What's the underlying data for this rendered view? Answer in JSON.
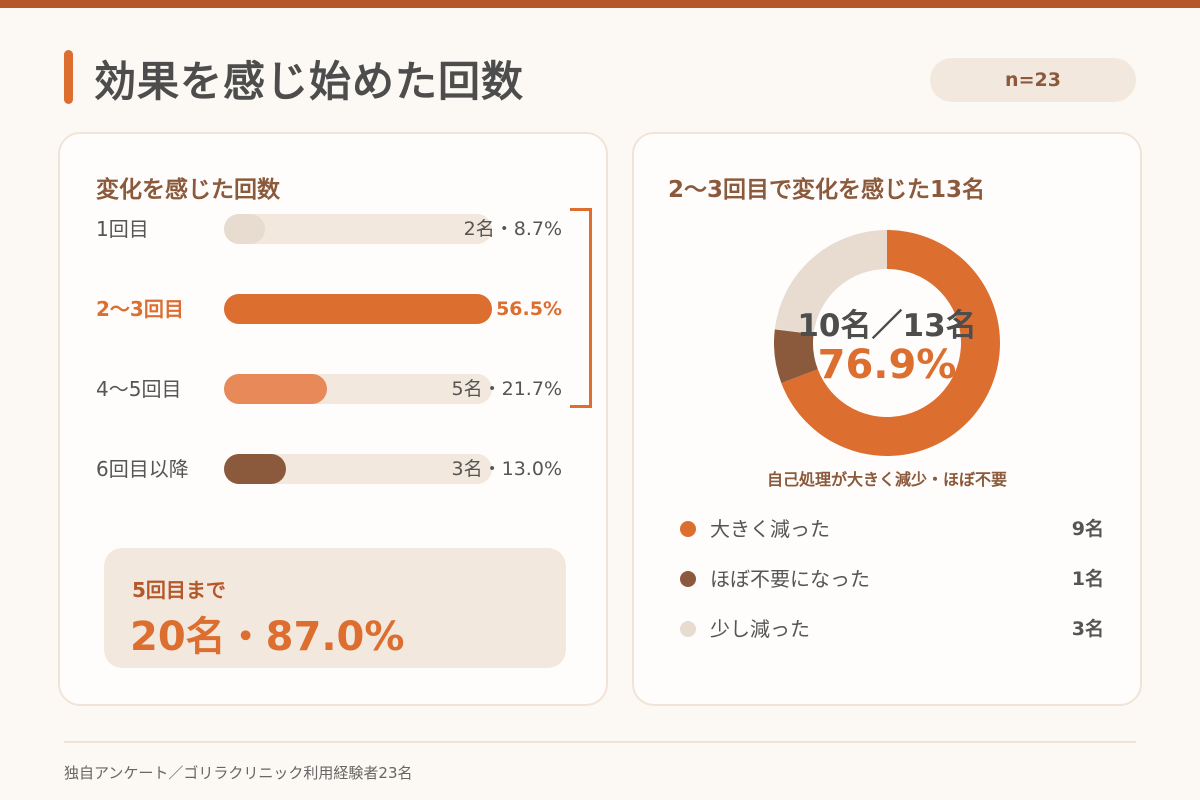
{
  "page": {
    "title": "効果を感じ始めた回数",
    "sample_size": "n=23",
    "source": "独自アンケート／ゴリラクリニック利用経験者23名"
  },
  "colors": {
    "accent": "#dc6e30",
    "brown": "#8b5a3c",
    "light_orange": "#e8895a",
    "beige": "#e8dbd0",
    "track": "#f2e8de"
  },
  "left_panel": {
    "title": "変化を感じた回数",
    "summary_label": "5回目まで",
    "summary_value": "20名・87.0%"
  },
  "right_panel": {
    "title": "2〜3回目で変化を感じた13名",
    "center_count": "10名／13名",
    "center_percent": "76.9%",
    "caption": "自己処理が大きく減少・ほぼ不要"
  },
  "chart_data": [
    {
      "type": "bar",
      "orientation": "horizontal",
      "title": "変化を感じた回数",
      "categories": [
        "1回目",
        "2〜3回目",
        "4〜5回目",
        "6回目以降"
      ],
      "values": [
        8.7,
        56.5,
        21.7,
        13.0
      ],
      "counts": [
        2,
        13,
        5,
        3
      ],
      "value_labels": [
        "2名・8.7%",
        "56.5%",
        "5名・21.7%",
        "3名・13.0%"
      ],
      "colors": [
        "#e8dbd0",
        "#dc6e30",
        "#e8895a",
        "#8b5a3c"
      ],
      "highlight_index": 1,
      "xlim": [
        0,
        56.5
      ]
    },
    {
      "type": "pie",
      "subtype": "donut",
      "title": "2〜3回目で変化を感じた13名",
      "labels": [
        "大きく減った",
        "ほぼ不要になった",
        "少し減った"
      ],
      "values": [
        9,
        1,
        3
      ],
      "value_labels": [
        "9名",
        "1名",
        "3名"
      ],
      "colors": [
        "#dc6e30",
        "#8b5a3c",
        "#e8dbd0"
      ],
      "total": 13
    }
  ]
}
